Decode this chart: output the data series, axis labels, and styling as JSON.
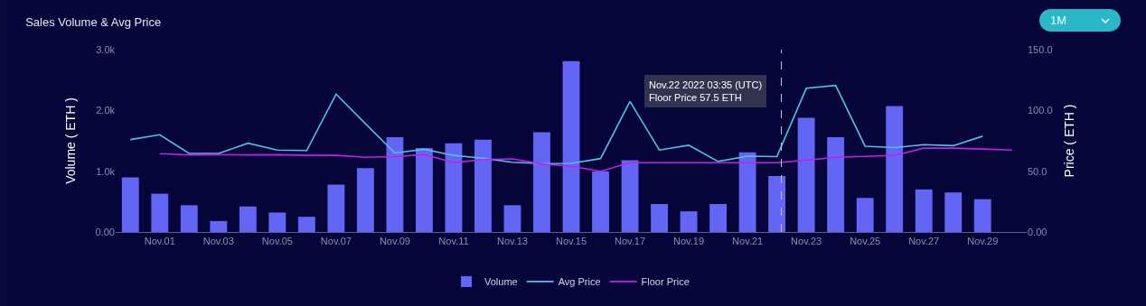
{
  "chart_data": {
    "type": "bar",
    "title": "Sales Volume & Avg Price",
    "x": [
      "2022-10-31",
      "2022-11-01",
      "2022-11-02",
      "2022-11-03",
      "2022-11-04",
      "2022-11-05",
      "2022-11-06",
      "2022-11-07",
      "2022-11-08",
      "2022-11-09",
      "2022-11-10",
      "2022-11-11",
      "2022-11-12",
      "2022-11-13",
      "2022-11-14",
      "2022-11-15",
      "2022-11-16",
      "2022-11-17",
      "2022-11-18",
      "2022-11-19",
      "2022-11-20",
      "2022-11-21",
      "2022-11-22",
      "2022-11-23",
      "2022-11-24",
      "2022-11-25",
      "2022-11-26",
      "2022-11-27",
      "2022-11-28",
      "2022-11-29",
      "2022-11-30"
    ],
    "series": [
      {
        "name": "Volume",
        "color": "#6366f5",
        "values": [
          900,
          630,
          440,
          180,
          420,
          320,
          250,
          780,
          1050,
          1560,
          1380,
          1460,
          1520,
          440,
          1640,
          2810,
          1000,
          1180,
          460,
          340,
          460,
          1310,
          920,
          1880,
          1560,
          560,
          2070,
          700,
          650,
          540,
          null
        ]
      },
      {
        "name": "Avg Price",
        "type": "line",
        "axis": "y2",
        "color": "#4fc3e6",
        "values": [
          76,
          80,
          64.6,
          64.6,
          73,
          67.4,
          67,
          113.4,
          89,
          65,
          68,
          63,
          60.6,
          57.4,
          56.2,
          56.4,
          60.4,
          107.4,
          67.4,
          71.4,
          58,
          62.4,
          62,
          118.2,
          120.6,
          70.6,
          69.4,
          71.8,
          71,
          78.8,
          null
        ]
      },
      {
        "name": "Floor Price",
        "type": "line",
        "axis": "y2",
        "color": "#c021e6",
        "values": [
          null,
          64.4,
          63.4,
          63.6,
          63.4,
          63.6,
          63,
          63,
          61.4,
          62,
          63.8,
          57,
          59.6,
          60.2,
          56,
          54,
          50,
          57,
          57,
          57,
          57,
          57,
          57,
          59,
          61.4,
          62.2,
          63,
          69,
          69,
          68.2,
          67.4
        ]
      }
    ],
    "ylabel": "Volume ( ETH )",
    "y2label": "Price ( ETH )",
    "xlim": [
      "2022-10-30T12:00",
      "2022-11-30T12:00"
    ],
    "xticks": [
      {
        "value": "2022-11-01",
        "label": "Nov.01"
      },
      {
        "value": "2022-11-03",
        "label": "Nov.03"
      },
      {
        "value": "2022-11-05",
        "label": "Nov.05"
      },
      {
        "value": "2022-11-07",
        "label": "Nov.07"
      },
      {
        "value": "2022-11-09",
        "label": "Nov.09"
      },
      {
        "value": "2022-11-11",
        "label": "Nov.11"
      },
      {
        "value": "2022-11-13",
        "label": "Nov.13"
      },
      {
        "value": "2022-11-15",
        "label": "Nov.15"
      },
      {
        "value": "2022-11-17",
        "label": "Nov.17"
      },
      {
        "value": "2022-11-19",
        "label": "Nov.19"
      },
      {
        "value": "2022-11-21",
        "label": "Nov.21"
      },
      {
        "value": "2022-11-23",
        "label": "Nov.23"
      },
      {
        "value": "2022-11-25",
        "label": "Nov.25"
      },
      {
        "value": "2022-11-27",
        "label": "Nov.27"
      },
      {
        "value": "2022-11-29",
        "label": "Nov.29"
      }
    ],
    "ylim": [
      0,
      3000
    ],
    "yticks": [
      {
        "value": 0,
        "label": "0.00"
      },
      {
        "value": 1000,
        "label": "1.0k"
      },
      {
        "value": 2000,
        "label": "2.0k"
      },
      {
        "value": 3000,
        "label": "3.0k"
      }
    ],
    "y2lim": [
      0,
      150
    ],
    "y2ticks": [
      {
        "value": 0,
        "label": "0.00"
      },
      {
        "value": 50,
        "label": "50.0"
      },
      {
        "value": 100,
        "label": "100.0"
      },
      {
        "value": 150,
        "label": "150.0"
      }
    ],
    "ref_lines": [
      {
        "axis": "x",
        "value": "2022-11-22T03:35",
        "color": "#c8c8d8",
        "line_style": "dashed"
      }
    ],
    "annotations": [
      "1M",
      "Nov.22 2022 03:35 (UTC)\nFloor Price 57.5 ETH"
    ],
    "legend": "bottom",
    "marker": "none",
    "line_style": "solid"
  }
}
